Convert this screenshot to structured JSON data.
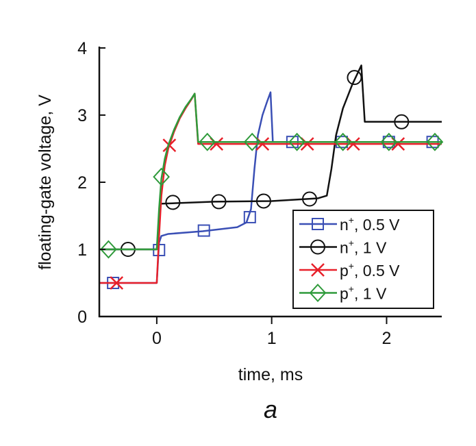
{
  "chart_data": {
    "type": "line",
    "title": "",
    "panel_label": "a",
    "xlabel": "time, ms",
    "ylabel": "floating-gate voltage, V",
    "xlim": [
      -0.5,
      2.48
    ],
    "ylim": [
      0,
      4
    ],
    "xticks": [
      0,
      1,
      2
    ],
    "xtick_labels": [
      "0",
      "1",
      "2"
    ],
    "yticks": [
      0,
      1,
      2,
      3,
      4
    ],
    "ytick_labels": [
      "0",
      "1",
      "2",
      "3",
      "4"
    ],
    "grid": false,
    "legend_position": "lower-right",
    "series": [
      {
        "name": "n+, 0.5 V",
        "base": "n",
        "sup": "+",
        "suffix": ", 0.5 V",
        "color": "#3a4fb5",
        "marker": "square",
        "line": [
          [
            -0.5,
            0.5
          ],
          [
            0,
            0.5
          ],
          [
            0.02,
            1.1
          ],
          [
            0.04,
            1.2
          ],
          [
            0.1,
            1.23
          ],
          [
            0.4,
            1.27
          ],
          [
            0.7,
            1.33
          ],
          [
            0.78,
            1.4
          ],
          [
            0.82,
            1.6
          ],
          [
            0.85,
            2.2
          ],
          [
            0.88,
            2.7
          ],
          [
            0.92,
            3.0
          ],
          [
            0.96,
            3.2
          ],
          [
            0.99,
            3.34
          ],
          [
            1.01,
            2.6
          ],
          [
            2.48,
            2.6
          ]
        ],
        "markers": [
          [
            -0.38,
            0.5
          ],
          [
            0.02,
            0.99
          ],
          [
            0.41,
            1.28
          ],
          [
            0.81,
            1.48
          ],
          [
            1.18,
            2.6
          ],
          [
            1.61,
            2.6
          ],
          [
            2.02,
            2.6
          ],
          [
            2.4,
            2.6
          ]
        ]
      },
      {
        "name": "n+, 1 V",
        "base": "n",
        "sup": "+",
        "suffix": ", 1 V",
        "color": "#111111",
        "marker": "circle",
        "line": [
          [
            -0.5,
            1
          ],
          [
            0,
            1
          ],
          [
            0.03,
            1.68
          ],
          [
            0.5,
            1.71
          ],
          [
            1.0,
            1.72
          ],
          [
            1.4,
            1.76
          ],
          [
            1.48,
            1.8
          ],
          [
            1.52,
            2.2
          ],
          [
            1.56,
            2.7
          ],
          [
            1.62,
            3.1
          ],
          [
            1.7,
            3.45
          ],
          [
            1.78,
            3.74
          ],
          [
            1.81,
            2.9
          ],
          [
            2.48,
            2.9
          ]
        ],
        "markers": [
          [
            -0.25,
            1.0
          ],
          [
            0.14,
            1.7
          ],
          [
            0.54,
            1.71
          ],
          [
            0.93,
            1.72
          ],
          [
            1.33,
            1.75
          ],
          [
            1.72,
            3.56
          ],
          [
            2.13,
            2.9
          ]
        ]
      },
      {
        "name": "p+, 0.5 V",
        "base": "p",
        "sup": "+",
        "suffix": ", 0.5 V",
        "color": "#e8202a",
        "marker": "x",
        "line": [
          [
            -0.5,
            0.5
          ],
          [
            0,
            0.5
          ],
          [
            0.02,
            1.2
          ],
          [
            0.04,
            1.8
          ],
          [
            0.07,
            2.25
          ],
          [
            0.1,
            2.5
          ],
          [
            0.15,
            2.75
          ],
          [
            0.2,
            2.95
          ],
          [
            0.25,
            3.1
          ],
          [
            0.3,
            3.23
          ],
          [
            0.33,
            3.32
          ],
          [
            0.36,
            2.57
          ],
          [
            2.48,
            2.57
          ]
        ],
        "markers": [
          [
            -0.35,
            0.5
          ],
          [
            0.11,
            2.55
          ],
          [
            0.52,
            2.57
          ],
          [
            0.92,
            2.57
          ],
          [
            1.31,
            2.57
          ],
          [
            1.71,
            2.57
          ],
          [
            2.1,
            2.57
          ]
        ]
      },
      {
        "name": "p+, 1 V",
        "base": "p",
        "sup": "+",
        "suffix": ", 1 V",
        "color": "#2e9a3a",
        "marker": "diamond",
        "line": [
          [
            -0.5,
            1.0
          ],
          [
            0,
            1.0
          ],
          [
            0.02,
            1.6
          ],
          [
            0.04,
            2.05
          ],
          [
            0.07,
            2.35
          ],
          [
            0.1,
            2.55
          ],
          [
            0.15,
            2.78
          ],
          [
            0.2,
            2.97
          ],
          [
            0.25,
            3.12
          ],
          [
            0.3,
            3.24
          ],
          [
            0.33,
            3.32
          ],
          [
            0.36,
            2.6
          ],
          [
            2.48,
            2.6
          ]
        ],
        "markers": [
          [
            -0.42,
            1.0
          ],
          [
            0.04,
            2.08
          ],
          [
            0.44,
            2.6
          ],
          [
            0.83,
            2.6
          ],
          [
            1.22,
            2.6
          ],
          [
            1.62,
            2.6
          ],
          [
            2.02,
            2.6
          ],
          [
            2.42,
            2.6
          ]
        ]
      }
    ]
  }
}
